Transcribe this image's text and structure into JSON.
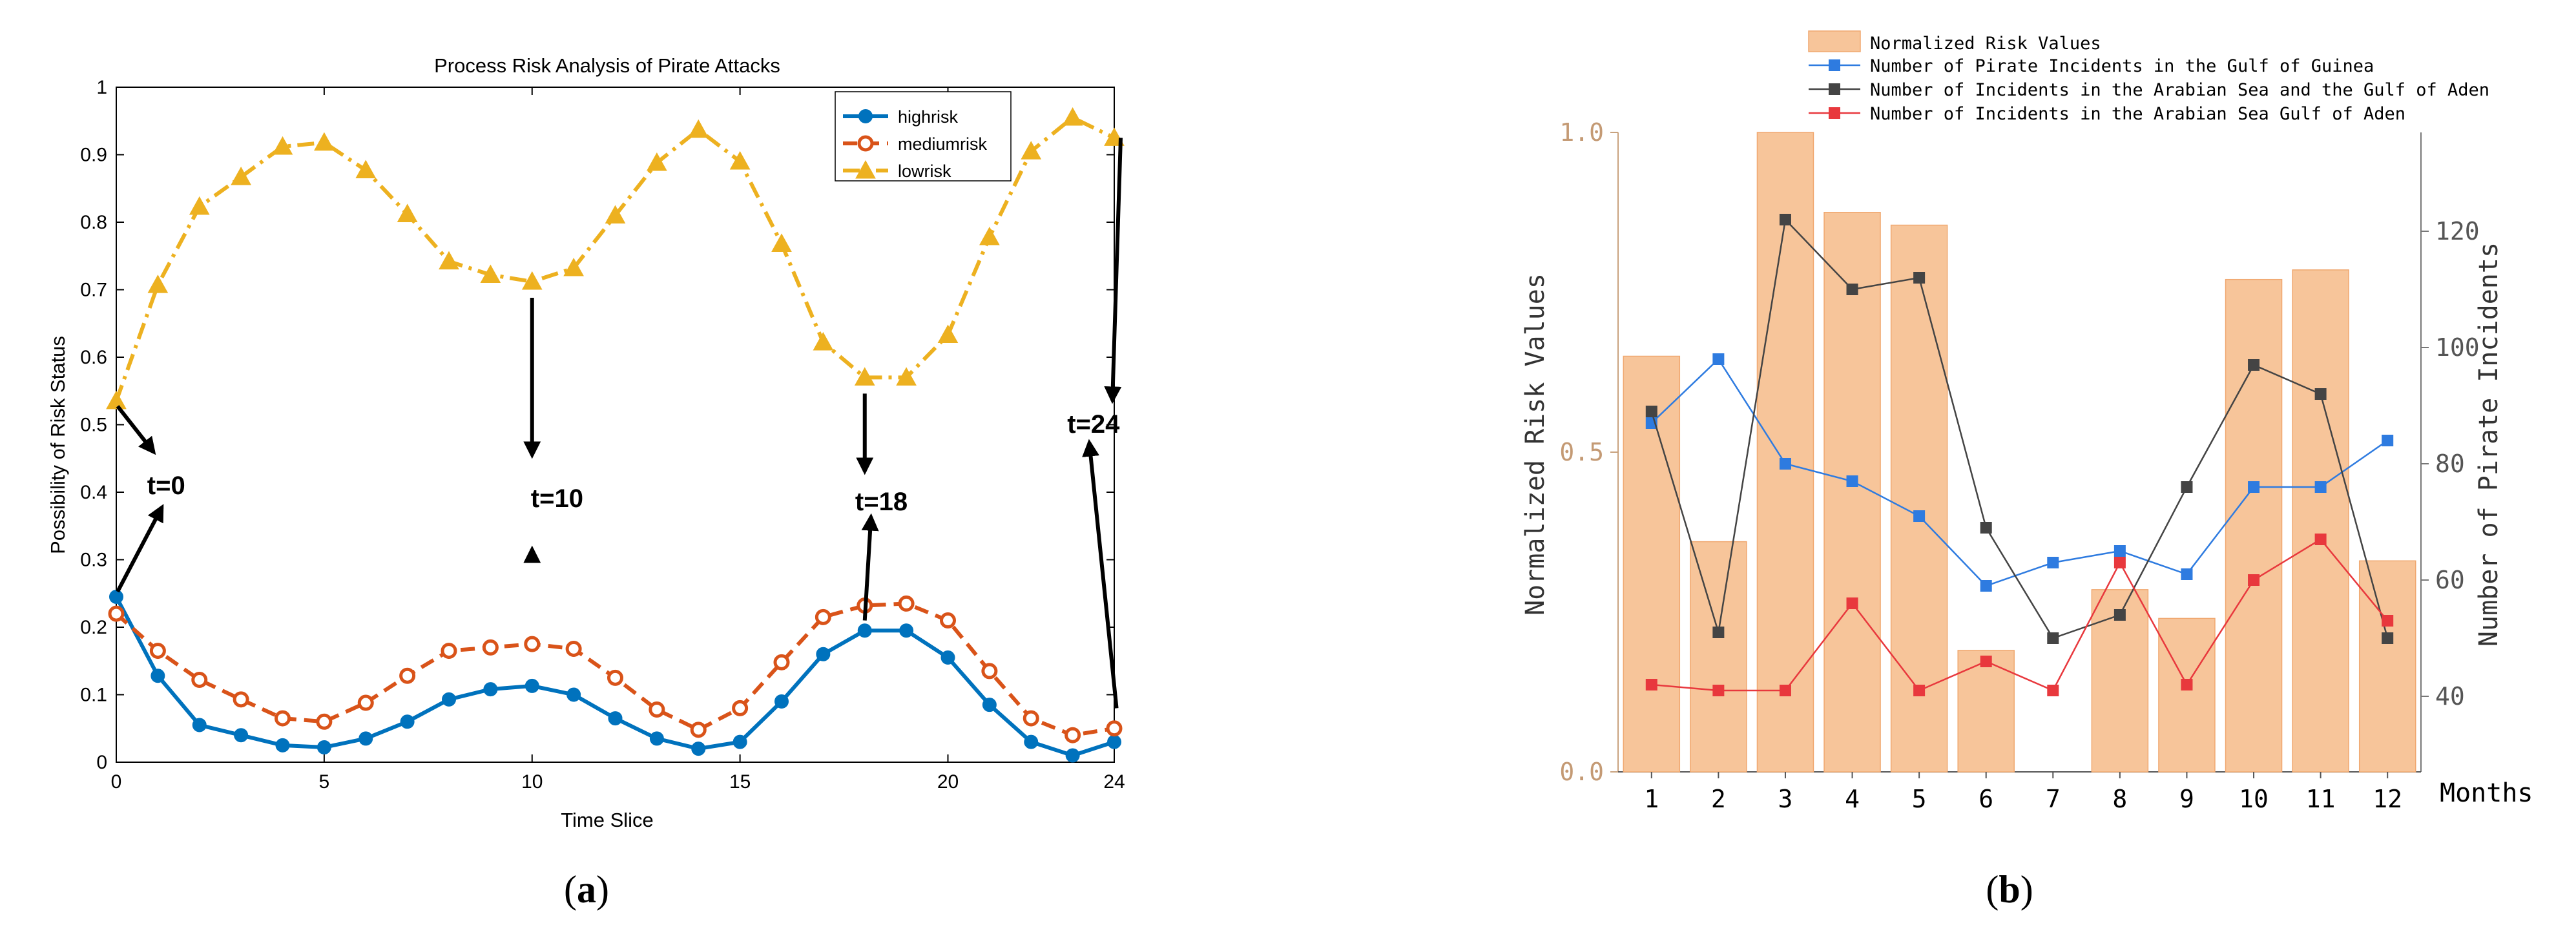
{
  "panels": {
    "a_label_open": "(",
    "a_label_letter": "a",
    "a_label_close": ")",
    "b_label_open": "(",
    "b_label_letter": "b",
    "b_label_close": ")"
  },
  "chart_data": [
    {
      "id": "a",
      "type": "line",
      "title": "Process Risk Analysis of Pirate Attacks",
      "xlabel": "Time Slice",
      "ylabel": "Possibility of Risk Status",
      "xlim": [
        0,
        24
      ],
      "ylim": [
        0,
        1
      ],
      "x_ticks": [
        0,
        5,
        10,
        15,
        20,
        24
      ],
      "y_ticks": [
        0,
        0.1,
        0.2,
        0.3,
        0.4,
        0.5,
        0.6,
        0.7,
        0.8,
        0.9,
        1
      ],
      "y_tick_labels": [
        "0",
        "0.1",
        "0.2",
        "0.3",
        "0.4",
        "0.5",
        "0.6",
        "0.7",
        "0.8",
        "0.9",
        "1"
      ],
      "legend_position": "top-right",
      "x": [
        0,
        1,
        2,
        3,
        4,
        5,
        6,
        7,
        8,
        9,
        10,
        11,
        12,
        13,
        14,
        15,
        16,
        17,
        18,
        19,
        20,
        21,
        22,
        23,
        24
      ],
      "series": [
        {
          "name": "highrisk",
          "color": "#0072BD",
          "marker": "filled-circle",
          "line": "solid",
          "values": [
            0.245,
            0.128,
            0.055,
            0.04,
            0.025,
            0.022,
            0.035,
            0.06,
            0.093,
            0.108,
            0.113,
            0.1,
            0.065,
            0.035,
            0.02,
            0.03,
            0.09,
            0.16,
            0.195,
            0.195,
            0.155,
            0.085,
            0.03,
            0.01,
            0.03
          ]
        },
        {
          "name": "mediumrisk",
          "color": "#D95319",
          "marker": "open-circle",
          "line": "dashed",
          "values": [
            0.22,
            0.165,
            0.122,
            0.093,
            0.065,
            0.06,
            0.088,
            0.128,
            0.165,
            0.17,
            0.175,
            0.168,
            0.125,
            0.078,
            0.048,
            0.08,
            0.148,
            0.215,
            0.232,
            0.235,
            0.21,
            0.135,
            0.065,
            0.04,
            0.05
          ]
        },
        {
          "name": "lowrisk",
          "color": "#EDB120",
          "marker": "filled-triangle",
          "line": "dash-dot",
          "values": [
            0.535,
            0.707,
            0.823,
            0.867,
            0.912,
            0.918,
            0.877,
            0.812,
            0.742,
            0.722,
            0.712,
            0.732,
            0.81,
            0.888,
            0.937,
            0.89,
            0.768,
            0.622,
            0.57,
            0.57,
            0.633,
            0.778,
            0.905,
            0.955,
            0.925
          ]
        }
      ],
      "annotations": [
        {
          "label": "t=0",
          "x": 0
        },
        {
          "label": "t=10",
          "x": 10
        },
        {
          "label": "t=18",
          "x": 18
        },
        {
          "label": "t=24",
          "x": 24
        }
      ]
    },
    {
      "id": "b",
      "type": "bar",
      "xlabel": "Months",
      "ylabel_left": "Normalized Risk Values",
      "ylabel_right": "Number of Pirate Incidents",
      "categories": [
        "1",
        "2",
        "3",
        "4",
        "5",
        "6",
        "7",
        "8",
        "9",
        "10",
        "11",
        "12"
      ],
      "ylim_left": [
        0,
        1
      ],
      "y_ticks_left": [
        0,
        0.5,
        1
      ],
      "y_tick_labels_left": [
        "0.0",
        "0.5",
        "1.0"
      ],
      "ylim_right": [
        27,
        137
      ],
      "y_ticks_right": [
        40,
        60,
        80,
        100,
        120
      ],
      "y_tick_labels_right": [
        "40",
        "60",
        "80",
        "100",
        "120"
      ],
      "legend_position": "top",
      "bar_series": {
        "name": "Normalized Risk Values",
        "color": "#F7C59A",
        "edge": "#F0A870",
        "values": [
          0.65,
          0.36,
          1.0,
          0.875,
          0.855,
          0.19,
          0.0,
          0.285,
          0.24,
          0.77,
          0.785,
          0.33
        ]
      },
      "line_series": [
        {
          "name": "Number of Pirate Incidents in the Gulf of Guinea",
          "color": "#2E7BE0",
          "values": [
            87,
            98,
            80,
            77,
            71,
            59,
            63,
            65,
            61,
            76,
            76,
            84
          ]
        },
        {
          "name": "Number of Incidents in the Arabian Sea and the Gulf of Aden",
          "color": "#444444",
          "values": [
            89,
            51,
            122,
            110,
            112,
            69,
            50,
            54,
            76,
            97,
            92,
            50
          ]
        },
        {
          "name": "Number of Incidents in the Arabian Sea Gulf of Aden",
          "color": "#E8383D",
          "values": [
            42,
            41,
            41,
            56,
            41,
            46,
            41,
            63,
            42,
            60,
            67,
            53
          ]
        }
      ]
    }
  ]
}
